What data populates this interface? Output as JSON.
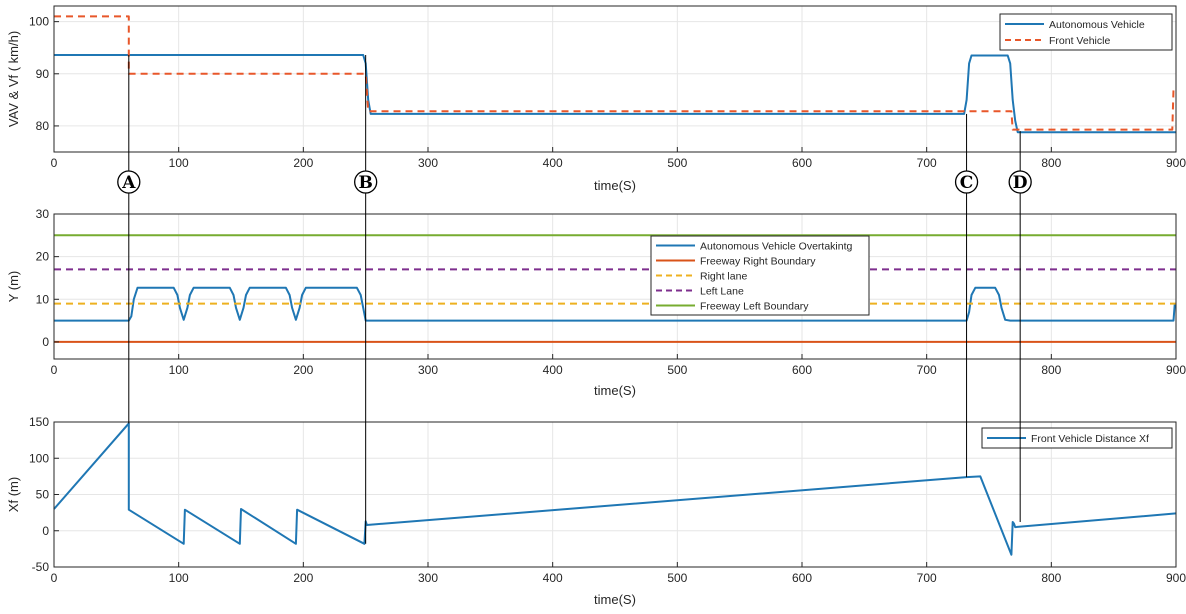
{
  "colors": {
    "av": "#1f77b4",
    "front": "#e8572a",
    "right_boundary": "#d95319",
    "right_lane": "#edb120",
    "left_lane": "#7e2f8e",
    "left_boundary": "#77ac30"
  },
  "markers": [
    {
      "label": "A",
      "time": 60
    },
    {
      "label": "B",
      "time": 250
    },
    {
      "label": "C",
      "time": 732
    },
    {
      "label": "D",
      "time": 775
    }
  ],
  "chart_data": [
    {
      "type": "line",
      "xlabel": "time(S)",
      "ylabel": "VAV & Vf ( km/h)",
      "xlim": [
        0,
        900
      ],
      "ylim": [
        75,
        103
      ],
      "xticks": [
        0,
        100,
        200,
        300,
        400,
        500,
        600,
        700,
        800,
        900
      ],
      "yticks": [
        80,
        90,
        100
      ],
      "grid": true,
      "legend_position": "top-right",
      "series": [
        {
          "name": "Autonomous  Vehicle",
          "style": "solid",
          "color_key": "av",
          "x": [
            0,
            249,
            253,
            900
          ],
          "y": [
            93.6,
            93.6,
            82.3,
            82.3
          ],
          "points": [
            [
              0,
              93.6
            ],
            [
              248,
              93.6
            ],
            [
              250,
              92
            ],
            [
              252,
              85
            ],
            [
              254,
              82.3
            ],
            [
              730,
              82.3
            ],
            [
              732,
              85
            ],
            [
              734,
              92
            ],
            [
              736,
              93.5
            ],
            [
              765,
              93.5
            ],
            [
              767,
              92
            ],
            [
              769,
              85
            ],
            [
              771,
              81
            ],
            [
              773,
              78.8
            ],
            [
              900,
              78.8
            ]
          ]
        },
        {
          "name": "Front Vehicle",
          "style": "dashed",
          "color_key": "front",
          "points": [
            [
              0,
              101
            ],
            [
              60,
              101
            ],
            [
              60,
              90
            ],
            [
              250,
              90
            ],
            [
              252,
              82.8
            ],
            [
              765,
              82.8
            ],
            [
              765,
              82.8
            ],
            [
              768,
              82.8
            ],
            [
              769,
              79.3
            ],
            [
              897,
              79.3
            ],
            [
              898,
              87
            ]
          ]
        }
      ]
    },
    {
      "type": "line",
      "xlabel": "time(S)",
      "ylabel": "Y (m)",
      "xlim": [
        0,
        900
      ],
      "ylim": [
        -4,
        30
      ],
      "xticks": [
        0,
        100,
        200,
        300,
        400,
        500,
        600,
        700,
        800,
        900
      ],
      "yticks": [
        0,
        10,
        20,
        30
      ],
      "grid": true,
      "legend_position": "center-right",
      "series": [
        {
          "name": "Autonomous Vehicle  Overtakintg",
          "style": "solid",
          "color_key": "av",
          "points": [
            [
              0,
              5
            ],
            [
              60,
              5
            ],
            [
              62,
              6
            ],
            [
              64,
              10
            ],
            [
              67,
              12.7
            ],
            [
              96,
              12.7
            ],
            [
              99,
              11
            ],
            [
              101,
              8
            ],
            [
              104,
              5.2
            ],
            [
              107,
              8
            ],
            [
              109,
              11
            ],
            [
              112,
              12.7
            ],
            [
              141,
              12.7
            ],
            [
              144,
              11
            ],
            [
              146,
              8
            ],
            [
              149,
              5.2
            ],
            [
              152,
              8
            ],
            [
              154,
              11
            ],
            [
              157,
              12.7
            ],
            [
              186,
              12.7
            ],
            [
              189,
              11
            ],
            [
              191,
              8
            ],
            [
              194,
              5.2
            ],
            [
              197,
              8
            ],
            [
              199,
              11
            ],
            [
              202,
              12.7
            ],
            [
              243,
              12.7
            ],
            [
              246,
              11
            ],
            [
              248,
              8
            ],
            [
              250,
              5
            ],
            [
              732,
              5
            ],
            [
              734,
              7
            ],
            [
              736,
              11
            ],
            [
              739,
              12.7
            ],
            [
              755,
              12.7
            ],
            [
              758,
              11
            ],
            [
              760,
              8
            ],
            [
              763,
              5.2
            ],
            [
              767,
              5
            ],
            [
              898,
              5
            ],
            [
              899,
              9
            ]
          ]
        },
        {
          "name": "Freeway Right Boundary",
          "style": "solid",
          "color_key": "right_boundary",
          "points": [
            [
              0,
              0
            ],
            [
              900,
              0
            ]
          ]
        },
        {
          "name": "Right lane",
          "style": "dashed",
          "color_key": "right_lane",
          "points": [
            [
              0,
              9
            ],
            [
              900,
              9
            ]
          ]
        },
        {
          "name": "Left Lane",
          "style": "dashed",
          "color_key": "left_lane",
          "points": [
            [
              0,
              17
            ],
            [
              900,
              17
            ]
          ]
        },
        {
          "name": "Freeway Left Boundary",
          "style": "solid",
          "color_key": "left_boundary",
          "points": [
            [
              0,
              25
            ],
            [
              900,
              25
            ]
          ]
        }
      ]
    },
    {
      "type": "line",
      "xlabel": "time(S)",
      "ylabel": "Xf (m)",
      "xlim": [
        0,
        900
      ],
      "ylim": [
        -50,
        150
      ],
      "xticks": [
        0,
        100,
        200,
        300,
        400,
        500,
        600,
        700,
        800,
        900
      ],
      "yticks": [
        -50,
        0,
        50,
        100,
        150
      ],
      "grid": true,
      "legend_position": "top-right",
      "series": [
        {
          "name": "Front Vehicle Distance Xf",
          "style": "solid",
          "color_key": "av",
          "points": [
            [
              0,
              30
            ],
            [
              60,
              148
            ],
            [
              60,
              29
            ],
            [
              104,
              -18
            ],
            [
              105,
              29
            ],
            [
              149,
              -18
            ],
            [
              150,
              30
            ],
            [
              194,
              -18
            ],
            [
              195,
              29
            ],
            [
              249,
              -18
            ],
            [
              250,
              13
            ],
            [
              251,
              8
            ],
            [
              732,
              74
            ],
            [
              743,
              75
            ],
            [
              768,
              -33
            ],
            [
              769,
              12
            ],
            [
              770,
              10
            ],
            [
              771,
              5
            ],
            [
              900,
              24
            ]
          ]
        }
      ]
    }
  ]
}
